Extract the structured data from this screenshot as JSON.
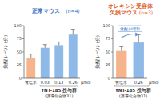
{
  "chart_data": [
    {
      "type": "bar",
      "title": "正常マウス",
      "subtitle": "(n=4)",
      "y_label": "覚醒レベル (分)",
      "x_label": "YNT-185 投与群",
      "x_sublabel": "(誘導化合物31)",
      "x_unit": "μmol",
      "categories": [
        "食塩水",
        "0.03",
        "0.13",
        "0.26"
      ],
      "values": [
        38,
        58,
        63,
        83
      ],
      "errors": [
        8,
        6,
        6,
        10
      ],
      "colors": [
        "#f6b48c",
        "#8fb9e6",
        "#8fb9e6",
        "#8fb9e6"
      ],
      "ylim": [
        0,
        100
      ],
      "yticks": [
        0,
        25,
        50,
        75,
        100
      ]
    },
    {
      "type": "bar",
      "title": "オレキシン受容体 欠損マウス",
      "subtitle": "(n=3)",
      "y_label": "覚醒レベル (分)",
      "x_label": "YNT-185 投与群",
      "x_sublabel": "(誘導化合物31)",
      "x_unit": "μmol",
      "annotation": "覚醒が増加",
      "categories": [
        "食塩水",
        "0.26"
      ],
      "values": [
        52,
        68
      ],
      "errors": [
        8,
        15
      ],
      "colors": [
        "#f6b48c",
        "#8fb9e6"
      ],
      "ylim": [
        0,
        100
      ],
      "yticks": [
        0,
        25,
        50,
        75,
        100
      ]
    }
  ]
}
